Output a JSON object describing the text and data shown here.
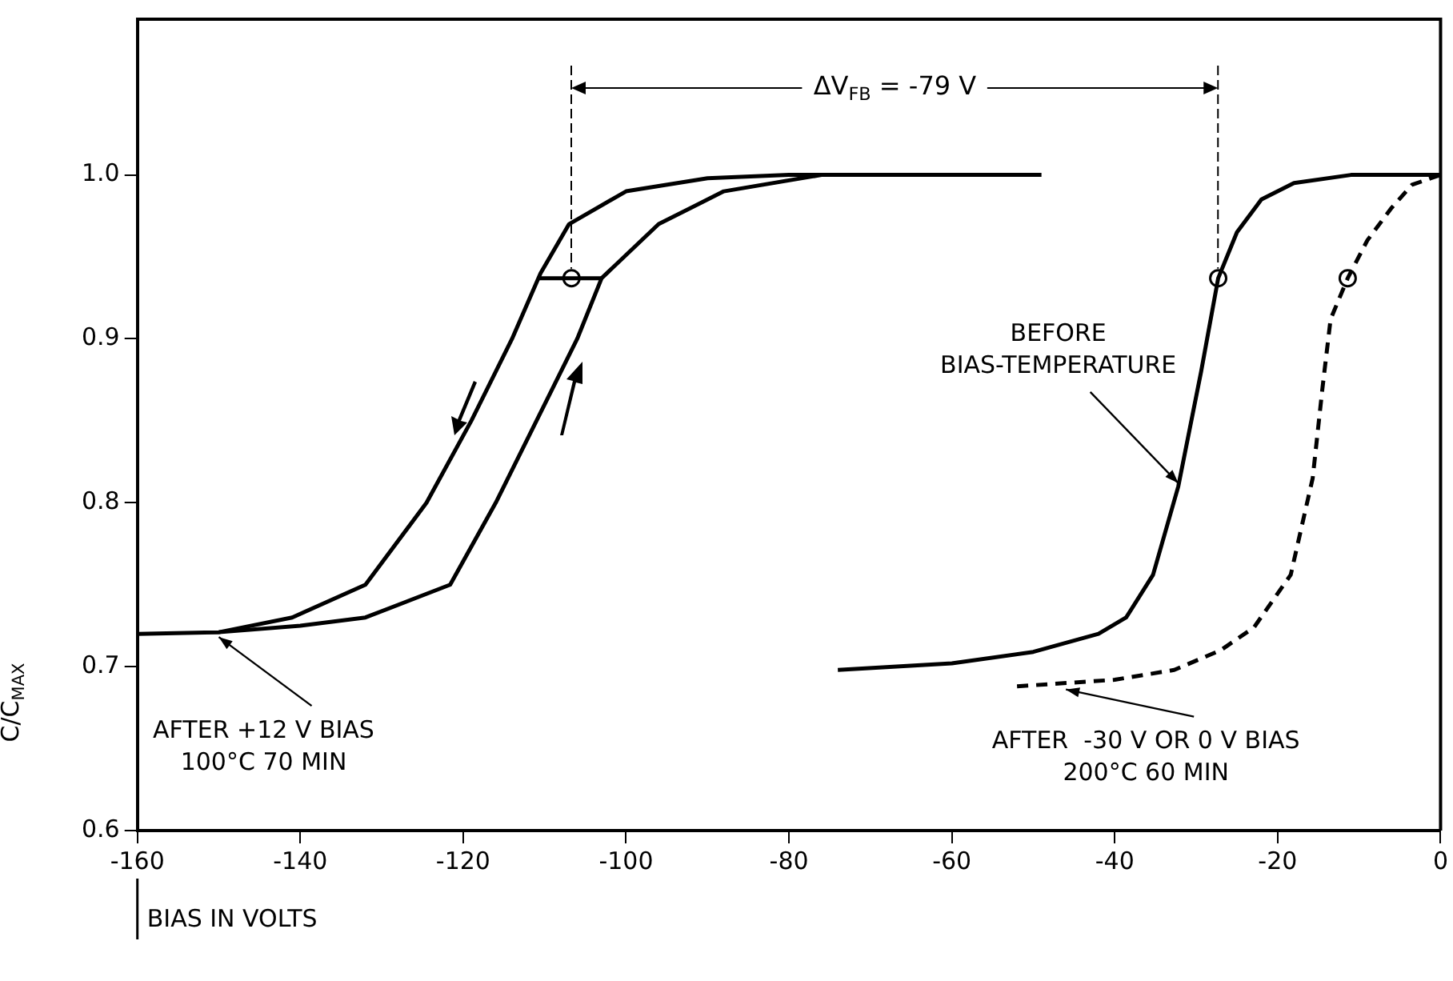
{
  "chart_data": {
    "type": "line",
    "xlabel": "BIAS IN VOLTS",
    "ylabel": "C/C$_{MAX}$",
    "xlim": [
      -160,
      0
    ],
    "xticks": [
      -160,
      -140,
      -120,
      -100,
      -80,
      -60,
      -40,
      -20,
      0
    ],
    "ylim": [
      0.6,
      1.095
    ],
    "yticks": [
      0.6,
      0.7,
      0.8,
      0.9,
      {
        "value": 1,
        "label": "1.0"
      }
    ],
    "grid": false,
    "legend": false,
    "marker": "none",
    "series": [
      {
        "color": "#000000",
        "line_style": "solid",
        "x": [
          -160,
          -150,
          -141,
          -132,
          -124.5,
          -119,
          -114,
          -110.5,
          -107,
          -100,
          -90,
          -80,
          -49
        ],
        "values": [
          0.72,
          0.721,
          0.73,
          0.75,
          0.8,
          0.85,
          0.9,
          0.94,
          0.97,
          0.99,
          0.998,
          1.0,
          1.0
        ]
      },
      {
        "color": "#000000",
        "line_style": "solid",
        "x": [
          -150,
          -140,
          -132,
          -121.6,
          -116,
          -111,
          -106,
          -103,
          -96,
          -88,
          -76
        ],
        "values": [
          0.721,
          0.725,
          0.73,
          0.75,
          0.8,
          0.85,
          0.9,
          0.937,
          0.97,
          0.99,
          1.0
        ]
      },
      {
        "color": "#000000",
        "line_style": "solid",
        "x": [
          -74,
          -60,
          -50,
          -42,
          -38.6,
          -35.3,
          -32.2,
          -29.4,
          -27.3,
          -25,
          -22,
          -18,
          -11,
          0
        ],
        "values": [
          0.698,
          0.702,
          0.709,
          0.72,
          0.73,
          0.756,
          0.81,
          0.88,
          0.937,
          0.965,
          0.985,
          0.995,
          1.0,
          1.0
        ]
      },
      {
        "color": "#000000",
        "line_style": "dashed",
        "x": [
          -52,
          -40,
          -32.7,
          -27,
          -22.9,
          -18.4,
          -15.7,
          -14.5,
          -13.5,
          -11.4,
          -9,
          -6,
          -3.5,
          0
        ],
        "values": [
          0.688,
          0.692,
          0.698,
          0.71,
          0.724,
          0.756,
          0.815,
          0.87,
          0.912,
          0.937,
          0.96,
          0.98,
          0.994,
          1.0
        ]
      },
      {
        "color": "#000000",
        "line_style": "solid",
        "x": [
          -110.7,
          -103
        ],
        "values": [
          0.937,
          0.937
        ]
      },
      {
        "type": "scatter",
        "color": "#000000",
        "marker": "circle",
        "x": [
          -106.7,
          -27.3,
          -11.4
        ],
        "values": [
          0.937,
          0.937,
          0.937
        ]
      }
    ],
    "annotations": [
      "ΔV$_{FB}$ = -79 V",
      {
        "text": "BEFORE\nBIAS-TEMPERATURE",
        "x": -32.2,
        "y": 0.81
      },
      {
        "text": "AFTER +12 V BIAS\n100°C 70 MIN",
        "x": -150,
        "y": 0.721
      },
      {
        "text": "AFTER  -30 V OR 0 V BIAS\n200°C 60 MIN",
        "x": -46,
        "y": 0.689
      }
    ]
  }
}
